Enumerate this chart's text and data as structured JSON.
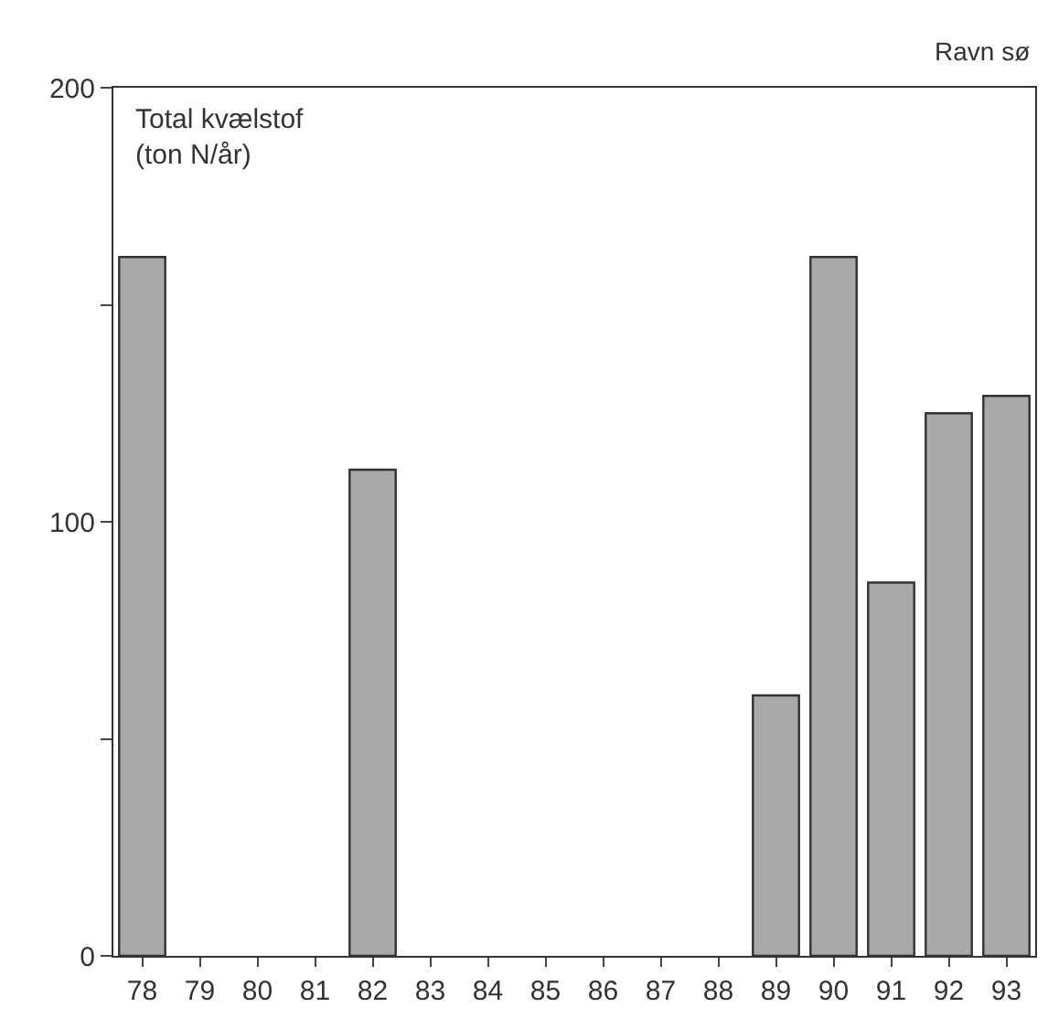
{
  "chart_data": {
    "type": "bar",
    "title": "Ravn sø",
    "ylabel": "Total kvælstof\n(ton N/år)",
    "categories": [
      "78",
      "79",
      "80",
      "81",
      "82",
      "83",
      "84",
      "85",
      "86",
      "87",
      "88",
      "89",
      "90",
      "91",
      "92",
      "93"
    ],
    "values": [
      161,
      null,
      null,
      null,
      112,
      null,
      null,
      null,
      null,
      null,
      null,
      60,
      161,
      86,
      125,
      129
    ],
    "color": "#a9a9a9",
    "ylim": [
      0,
      200
    ],
    "yticks": [
      0,
      {
        "value": 50,
        "label": null
      },
      100,
      {
        "value": 150,
        "label": null
      },
      200
    ]
  }
}
